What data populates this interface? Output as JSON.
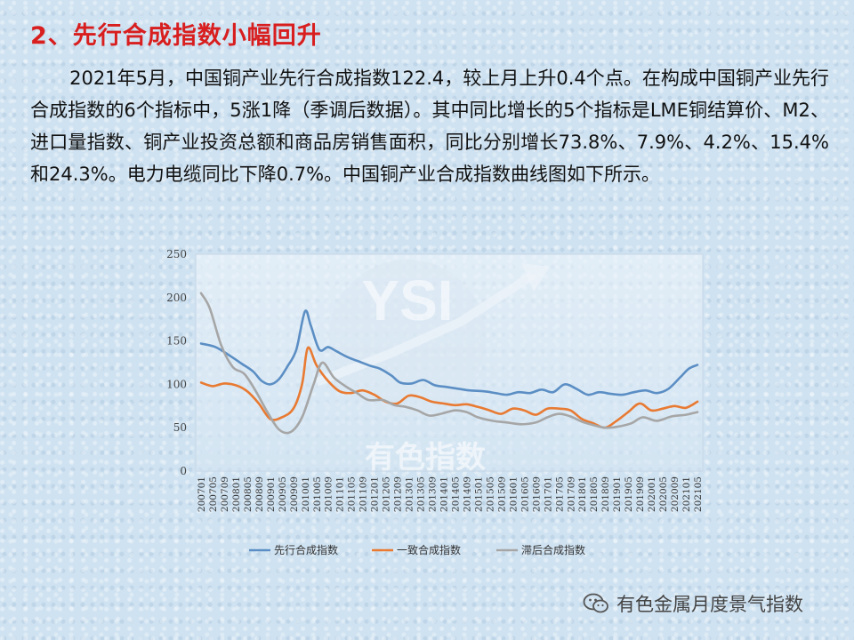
{
  "heading": "2、先行合成指数小幅回升",
  "paragraph": "2021年5月，中国铜产业先行合成指数122.4，较上月上升0.4个点。在构成中国铜产业先行合成指数的6个指标中，5涨1降（季调后数据）。其中同比增长的5个指标是LME铜结算价、M2、进口量指数、铜产业投资总额和商品房销售面积，同比分别增长73.8%、7.9%、4.2%、15.4%和24.3%。电力电缆同比下降0.7%。中国铜产业合成指数曲线图如下所示。",
  "watermark": "有色指数",
  "watermark_logo": "YSI",
  "footer": {
    "icon": "wechat-icon",
    "text": "有色金属月度景气指数"
  },
  "colors": {
    "heading": "#d81e1e",
    "leading": "#5b8ec4",
    "coincident": "#e87a32",
    "lagging": "#a6a6a6"
  },
  "chart_data": {
    "type": "line",
    "title": "",
    "xlabel": "",
    "ylabel": "",
    "ylim": [
      0,
      250
    ],
    "yticks": [
      0,
      50,
      100,
      150,
      200,
      250
    ],
    "grid": false,
    "legend_position": "bottom",
    "x_start": "2007-01",
    "x_end": "2021-05",
    "tick_labels": [
      "200701",
      "200705",
      "200709",
      "200801",
      "200805",
      "200809",
      "200901",
      "200905",
      "200909",
      "201001",
      "201005",
      "201009",
      "201101",
      "201105",
      "201109",
      "201201",
      "201205",
      "201209",
      "201301",
      "201305",
      "201309",
      "201401",
      "201405",
      "201409",
      "201501",
      "201505",
      "201509",
      "201601",
      "201605",
      "201609",
      "201701",
      "201705",
      "201709",
      "201801",
      "201805",
      "201809",
      "201901",
      "201905",
      "201909",
      "202001",
      "202005",
      "202009",
      "202101",
      "202105"
    ],
    "series": [
      {
        "name": "先行合成指数",
        "color": "#5b8ec4",
        "points": [
          [
            "2007-01",
            147
          ],
          [
            "2007-06",
            143
          ],
          [
            "2007-11",
            133
          ],
          [
            "2008-03",
            124
          ],
          [
            "2008-07",
            115
          ],
          [
            "2008-10",
            104
          ],
          [
            "2009-01",
            100
          ],
          [
            "2009-04",
            106
          ],
          [
            "2009-07",
            121
          ],
          [
            "2009-10",
            140
          ],
          [
            "2010-01",
            184
          ],
          [
            "2010-03",
            168
          ],
          [
            "2010-06",
            140
          ],
          [
            "2010-09",
            143
          ],
          [
            "2010-12",
            138
          ],
          [
            "2011-04",
            131
          ],
          [
            "2011-08",
            126
          ],
          [
            "2011-12",
            121
          ],
          [
            "2012-03",
            118
          ],
          [
            "2012-07",
            110
          ],
          [
            "2012-10",
            102
          ],
          [
            "2013-02",
            101
          ],
          [
            "2013-06",
            105
          ],
          [
            "2013-10",
            99
          ],
          [
            "2014-02",
            97
          ],
          [
            "2014-06",
            95
          ],
          [
            "2014-10",
            93
          ],
          [
            "2015-03",
            92
          ],
          [
            "2015-07",
            90
          ],
          [
            "2015-11",
            88
          ],
          [
            "2016-03",
            91
          ],
          [
            "2016-07",
            90
          ],
          [
            "2016-11",
            94
          ],
          [
            "2017-03",
            91
          ],
          [
            "2017-07",
            100
          ],
          [
            "2017-11",
            95
          ],
          [
            "2018-03",
            88
          ],
          [
            "2018-07",
            91
          ],
          [
            "2018-11",
            89
          ],
          [
            "2019-03",
            88
          ],
          [
            "2019-07",
            91
          ],
          [
            "2019-11",
            93
          ],
          [
            "2020-03",
            90
          ],
          [
            "2020-07",
            95
          ],
          [
            "2020-11",
            108
          ],
          [
            "2021-02",
            118
          ],
          [
            "2021-05",
            122.4
          ]
        ]
      },
      {
        "name": "一致合成指数",
        "color": "#e87a32",
        "points": [
          [
            "2007-01",
            102
          ],
          [
            "2007-05",
            98
          ],
          [
            "2007-09",
            101
          ],
          [
            "2008-01",
            99
          ],
          [
            "2008-05",
            92
          ],
          [
            "2008-09",
            78
          ],
          [
            "2009-01",
            60
          ],
          [
            "2009-05",
            62
          ],
          [
            "2009-09",
            72
          ],
          [
            "2009-12",
            100
          ],
          [
            "2010-02",
            142
          ],
          [
            "2010-05",
            122
          ],
          [
            "2010-09",
            104
          ],
          [
            "2011-01",
            92
          ],
          [
            "2011-05",
            90
          ],
          [
            "2011-09",
            93
          ],
          [
            "2012-01",
            88
          ],
          [
            "2012-05",
            80
          ],
          [
            "2012-09",
            78
          ],
          [
            "2013-01",
            87
          ],
          [
            "2013-05",
            85
          ],
          [
            "2013-09",
            80
          ],
          [
            "2014-01",
            78
          ],
          [
            "2014-05",
            76
          ],
          [
            "2014-09",
            77
          ],
          [
            "2015-01",
            74
          ],
          [
            "2015-05",
            70
          ],
          [
            "2015-09",
            66
          ],
          [
            "2016-01",
            72
          ],
          [
            "2016-05",
            70
          ],
          [
            "2016-09",
            65
          ],
          [
            "2017-01",
            72
          ],
          [
            "2017-05",
            72
          ],
          [
            "2017-09",
            70
          ],
          [
            "2018-01",
            60
          ],
          [
            "2018-05",
            55
          ],
          [
            "2018-09",
            50
          ],
          [
            "2019-01",
            58
          ],
          [
            "2019-05",
            68
          ],
          [
            "2019-09",
            78
          ],
          [
            "2020-01",
            70
          ],
          [
            "2020-05",
            72
          ],
          [
            "2020-09",
            75
          ],
          [
            "2021-01",
            73
          ],
          [
            "2021-05",
            80
          ]
        ]
      },
      {
        "name": "滞后合成指数",
        "color": "#a6a6a6",
        "points": [
          [
            "2007-01",
            205
          ],
          [
            "2007-04",
            188
          ],
          [
            "2007-08",
            145
          ],
          [
            "2007-12",
            120
          ],
          [
            "2008-04",
            112
          ],
          [
            "2008-08",
            92
          ],
          [
            "2008-12",
            68
          ],
          [
            "2009-04",
            48
          ],
          [
            "2009-08",
            45
          ],
          [
            "2009-12",
            62
          ],
          [
            "2010-04",
            100
          ],
          [
            "2010-07",
            125
          ],
          [
            "2010-11",
            108
          ],
          [
            "2011-03",
            98
          ],
          [
            "2011-07",
            90
          ],
          [
            "2011-11",
            82
          ],
          [
            "2012-04",
            82
          ],
          [
            "2012-08",
            76
          ],
          [
            "2012-12",
            74
          ],
          [
            "2013-04",
            70
          ],
          [
            "2013-08",
            64
          ],
          [
            "2013-12",
            66
          ],
          [
            "2014-05",
            70
          ],
          [
            "2014-09",
            68
          ],
          [
            "2015-01",
            62
          ],
          [
            "2015-06",
            58
          ],
          [
            "2015-11",
            56
          ],
          [
            "2016-04",
            54
          ],
          [
            "2016-09",
            56
          ],
          [
            "2017-01",
            62
          ],
          [
            "2017-05",
            66
          ],
          [
            "2017-09",
            63
          ],
          [
            "2018-01",
            57
          ],
          [
            "2018-05",
            53
          ],
          [
            "2018-09",
            50
          ],
          [
            "2019-01",
            51
          ],
          [
            "2019-06",
            55
          ],
          [
            "2019-10",
            62
          ],
          [
            "2020-03",
            58
          ],
          [
            "2020-08",
            63
          ],
          [
            "2021-01",
            65
          ],
          [
            "2021-05",
            68
          ]
        ]
      }
    ]
  }
}
